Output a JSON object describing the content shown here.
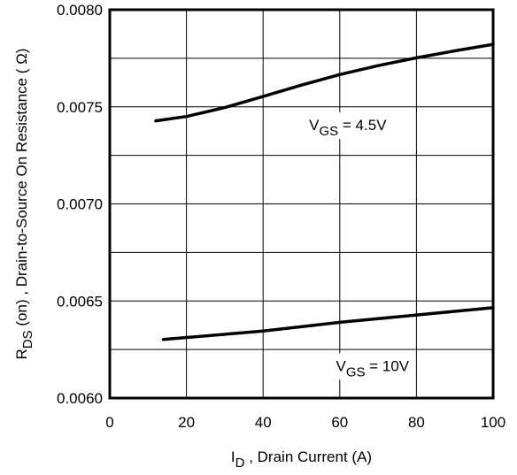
{
  "chart_data": {
    "type": "line",
    "xlim": [
      0,
      100
    ],
    "ylim": [
      0.006,
      0.008
    ],
    "x_ticks": [
      0,
      20,
      40,
      60,
      80,
      100
    ],
    "y_ticks": [
      0.006,
      0.0065,
      0.007,
      0.0075,
      0.008
    ],
    "x_tick_labels": [
      "0",
      "20",
      "40",
      "60",
      "80",
      "100"
    ],
    "y_tick_labels": [
      "0.0060",
      "0.0065",
      "0.0070",
      "0.0075",
      "0.0080"
    ],
    "x_grid": [
      20,
      40,
      60,
      80
    ],
    "y_grid": [
      0.00625,
      0.0065,
      0.00675,
      0.007,
      0.00725,
      0.0075,
      0.00775
    ],
    "grid": true,
    "legend": "none",
    "xlabel": {
      "main": "I",
      "sub": "D",
      "rest": " , Drain Current (A)"
    },
    "ylabel": {
      "main": "R",
      "sub": "DS",
      "rest": " (on) , Drain-to-Source On Resistance ( Ω)"
    },
    "series": [
      {
        "label_main": "V",
        "label_sub": "GS",
        "label_rest": " = 4.5V",
        "label_at": [
          52,
          0.00738
        ],
        "x": [
          12,
          20,
          30,
          40,
          50,
          60,
          70,
          80,
          90,
          100
        ],
        "y": [
          0.007428,
          0.00745,
          0.007496,
          0.007553,
          0.007612,
          0.007666,
          0.007712,
          0.007752,
          0.007788,
          0.007822
        ]
      },
      {
        "label_main": "V",
        "label_sub": "GS",
        "label_rest": " = 10V",
        "label_at": [
          59,
          0.00614
        ],
        "x": [
          14,
          40,
          60,
          80,
          100
        ],
        "y": [
          0.006302,
          0.006345,
          0.00639,
          0.006428,
          0.006465
        ]
      }
    ]
  }
}
